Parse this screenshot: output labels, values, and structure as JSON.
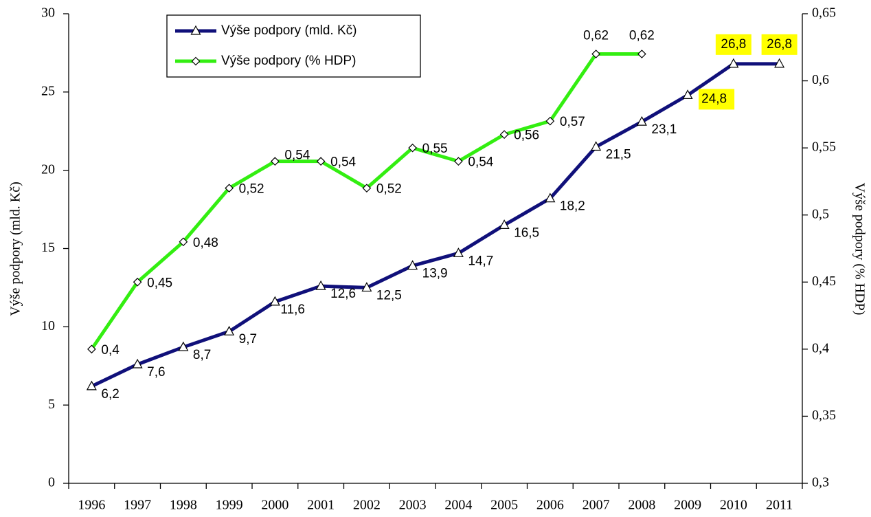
{
  "chart_data": {
    "type": "line",
    "categories": [
      "1996",
      "1997",
      "1998",
      "1999",
      "2000",
      "2001",
      "2002",
      "2003",
      "2004",
      "2005",
      "2006",
      "2007",
      "2008",
      "2009",
      "2010",
      "2011"
    ],
    "series": [
      {
        "name": "Výše podpory (mld. Kč)",
        "color": "#10107a",
        "marker": "triangle",
        "values": [
          6.2,
          7.6,
          8.7,
          9.7,
          11.6,
          12.6,
          12.5,
          13.9,
          14.7,
          16.5,
          18.2,
          21.5,
          23.1,
          24.8,
          26.8,
          26.8
        ],
        "value_labels": [
          "6,2",
          "7,6",
          "8,7",
          "9,7",
          "11,6",
          "12,6",
          "12,5",
          "13,9",
          "14,7",
          "16,5",
          "18,2",
          "21,5",
          "23,1",
          "24,8",
          "26,8",
          "26,8"
        ],
        "label_highlight_color": "#ffff00",
        "highlighted": [
          13,
          14,
          15
        ]
      },
      {
        "name": "Výše podpory (% HDP)",
        "color": "#33ee11",
        "marker": "diamond",
        "axis": "y2",
        "values": [
          0.4,
          0.45,
          0.48,
          0.52,
          0.54,
          0.54,
          0.52,
          0.55,
          0.54,
          0.56,
          0.57,
          0.62,
          0.62,
          null,
          null,
          null
        ],
        "value_labels": [
          "0,4",
          "0,45",
          "0,48",
          "0,52",
          "0,54",
          "0,54",
          "0,52",
          "0,55",
          "0,54",
          "0,56",
          "0,57",
          "0,62",
          "0,62",
          null,
          null,
          null
        ]
      }
    ],
    "ylabel": "Výše podpory (mld. Kč)",
    "y2label": "Výše podpory (% HDP)",
    "ylim": [
      0,
      30
    ],
    "yticks": [
      0,
      5,
      10,
      15,
      20,
      25,
      30
    ],
    "y2lim": [
      0.3,
      0.65
    ],
    "y2ticks": [
      {
        "value": 0.3,
        "label": "0,3"
      },
      {
        "value": 0.35,
        "label": "0,35"
      },
      {
        "value": 0.4,
        "label": "0,4"
      },
      {
        "value": 0.45,
        "label": "0,45"
      },
      {
        "value": 0.5,
        "label": "0,5"
      },
      {
        "value": 0.55,
        "label": "0,55"
      },
      {
        "value": 0.6,
        "label": "0,6"
      },
      {
        "value": 0.65,
        "label": "0,65"
      }
    ],
    "legend": "upper left",
    "grid": false
  }
}
